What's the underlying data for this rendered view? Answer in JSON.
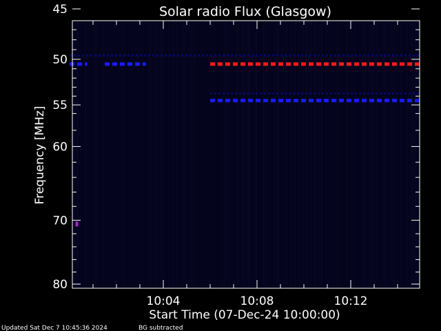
{
  "chart_data": {
    "type": "heatmap",
    "title": "Solar radio Flux (Glasgow)",
    "xlabel": "Start Time (07-Dec-24 10:00:00)",
    "ylabel": "Frequency [MHz]",
    "x_ticks": [
      "10:04",
      "10:08",
      "10:12"
    ],
    "y_ticks": [
      "45",
      "50",
      "55",
      "60",
      "70",
      "80"
    ],
    "y_axis_scale": "log",
    "footer_left": "Updated Sat Dec  7 10:45:36 2024",
    "footer_right": "BG subtracted",
    "background_color": "#000000",
    "spectrogram_base_color": "#03031a",
    "colors": {
      "blue_band": "#1a1aff",
      "red_band": "#ff1a1a",
      "faint_band": "#0a0a80",
      "purple_dot": "#aa22cc",
      "frame": "#ffffff"
    },
    "features": [
      {
        "name": "faint-band-49.6MHz",
        "freq_mhz": 49.6,
        "start_time": "10:00:00",
        "end_time": "10:14:55",
        "color": "faint_band"
      },
      {
        "name": "blue-band-50.5MHz-early",
        "freq_mhz": 50.5,
        "start_time": "10:00:00",
        "end_time": "10:00:45",
        "color": "blue_band"
      },
      {
        "name": "blue-band-50.5MHz-mid",
        "freq_mhz": 50.5,
        "start_time": "10:01:30",
        "end_time": "10:03:15",
        "color": "blue_band"
      },
      {
        "name": "red-band-50.5MHz",
        "freq_mhz": 50.5,
        "start_time": "10:06:00",
        "end_time": "10:14:55",
        "color": "red_band"
      },
      {
        "name": "faint-band-53.7MHz",
        "freq_mhz": 53.7,
        "start_time": "10:06:00",
        "end_time": "10:14:55",
        "color": "faint_band"
      },
      {
        "name": "blue-band-54.5MHz",
        "freq_mhz": 54.5,
        "start_time": "10:06:00",
        "end_time": "10:14:55",
        "color": "blue_band"
      },
      {
        "name": "purple-dot-70.5MHz",
        "freq_mhz": 70.5,
        "start_time": "10:00:15",
        "end_time": "10:00:20",
        "color": "purple_dot"
      }
    ]
  }
}
